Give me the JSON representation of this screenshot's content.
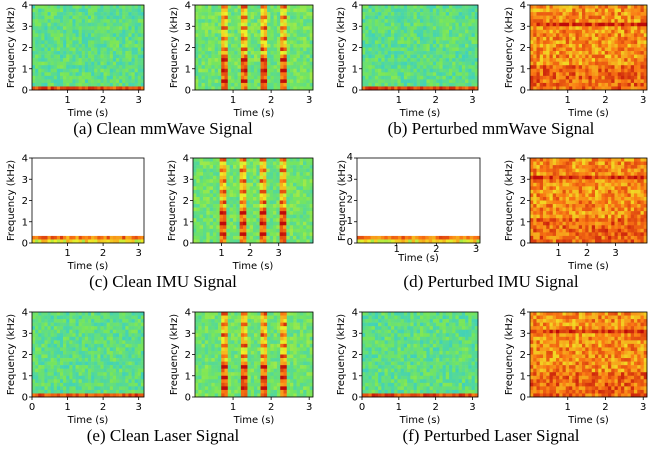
{
  "figures": [
    {
      "caption": "(a) Clean mmWave Signal",
      "plots": [
        {
          "ylabel": "Frequency (kHz)",
          "xlabel": "Time (s)",
          "yticks": [
            0,
            1,
            2,
            3,
            4
          ],
          "xticks": [
            1,
            2,
            3
          ]
        },
        {
          "ylabel": "Frequency (kHz)",
          "xlabel": "Time (s)",
          "yticks": [
            0,
            1,
            2,
            3,
            4
          ],
          "xticks": [
            1,
            2,
            3
          ]
        }
      ]
    },
    {
      "caption": "(b) Perturbed mmWave Signal",
      "plots": [
        {
          "ylabel": "Frequency (kHz)",
          "xlabel": "Time (s)",
          "yticks": [
            0,
            1,
            2,
            3,
            4
          ],
          "xticks": [
            1,
            2,
            3
          ]
        },
        {
          "ylabel": "Frequency (kHz)",
          "xlabel": "Time (s)",
          "yticks": [
            0,
            1,
            2,
            3,
            4
          ],
          "xticks": [
            1,
            2,
            3
          ]
        }
      ]
    },
    {
      "caption": "(c) Clean IMU Signal",
      "plots": [
        {
          "ylabel": "Frequency (kHz)",
          "xlabel": "Time (s)",
          "yticks": [
            0,
            1,
            2,
            3,
            4
          ],
          "xticks": [
            1,
            2,
            3
          ]
        },
        {
          "ylabel": "Frequency (kHz)",
          "xlabel": "Time (s)",
          "yticks": [
            0,
            1,
            2,
            3,
            4
          ],
          "xticks": [
            1,
            2,
            3
          ]
        }
      ]
    },
    {
      "caption": "(d) Perturbed IMU Signal",
      "plots": [
        {
          "ylabel": "Frequency (kHz)",
          "xlabel": "Time (s)",
          "yticks": [
            0,
            1,
            2,
            3,
            4
          ],
          "xticks": [
            1,
            2,
            3
          ]
        },
        {
          "ylabel": "Frequency (kHz)",
          "xlabel": "Time (s)",
          "yticks": [
            0,
            1,
            2,
            3,
            4
          ],
          "xticks": [
            1,
            2,
            3
          ]
        }
      ]
    },
    {
      "caption": "(e) Clean Laser Signal",
      "plots": [
        {
          "ylabel": "Frequency (kHz)",
          "xlabel": "Time (s)",
          "yticks": [
            0,
            1,
            2,
            3,
            4
          ],
          "xticks": [
            0,
            1,
            2,
            3
          ]
        },
        {
          "ylabel": "Frequency (kHz)",
          "xlabel": "Time (s)",
          "yticks": [
            0,
            1,
            2,
            3,
            4
          ],
          "xticks": [
            1,
            2,
            3
          ]
        }
      ]
    },
    {
      "caption": "(f) Perturbed Laser Signal",
      "plots": [
        {
          "ylabel": "Frequency (kHz)",
          "xlabel": "Time (s)",
          "yticks": [
            0,
            1,
            2,
            3,
            4
          ],
          "xticks": [
            0,
            1,
            2,
            3
          ]
        },
        {
          "ylabel": "Frequency (kHz)",
          "xlabel": "Time (s)",
          "yticks": [
            0,
            1,
            2,
            3,
            4
          ],
          "xticks": [
            1,
            2,
            3
          ]
        }
      ]
    }
  ]
}
